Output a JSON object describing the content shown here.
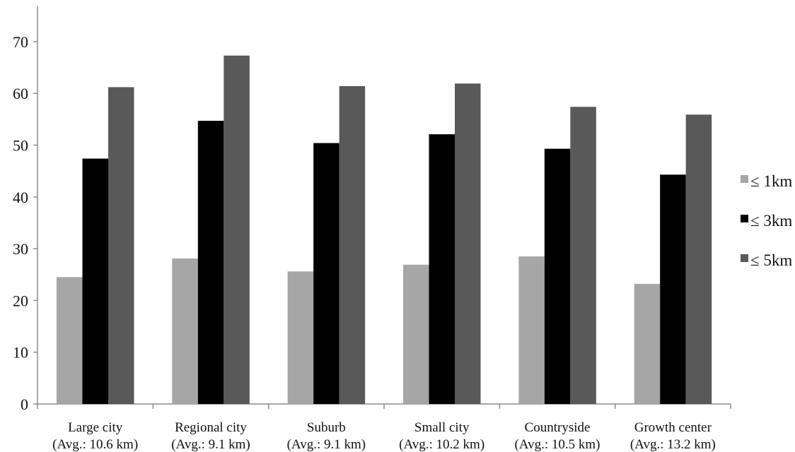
{
  "chart_data": {
    "type": "bar",
    "title": "",
    "xlabel": "",
    "ylabel": "",
    "ylim": [
      0,
      75
    ],
    "yticks": [
      0,
      10,
      20,
      30,
      40,
      50,
      60,
      70
    ],
    "grid": false,
    "legend_position": "right",
    "categories": [
      [
        "Large city",
        "(Avg.: 10.6 km)"
      ],
      [
        "Regional city",
        "(Avg.: 9.1 km)"
      ],
      [
        "Suburb",
        "(Avg.: 9.1 km)"
      ],
      [
        "Small city",
        "(Avg.: 10.2 km)"
      ],
      [
        "Countryside",
        "(Avg.: 10.5 km)"
      ],
      [
        "Growth center",
        "(Avg.: 13.2 km)"
      ]
    ],
    "series": [
      {
        "name": "≤ 1km",
        "color": "#a6a6a6",
        "values": [
          24.5,
          28.1,
          25.6,
          26.9,
          28.5,
          23.2
        ]
      },
      {
        "name": "≤ 3km",
        "color": "#000000",
        "values": [
          47.4,
          54.7,
          50.4,
          52.1,
          49.3,
          44.3
        ]
      },
      {
        "name": "≤ 5km",
        "color": "#595959",
        "values": [
          61.2,
          67.3,
          61.4,
          61.9,
          57.4,
          55.9
        ]
      }
    ]
  }
}
